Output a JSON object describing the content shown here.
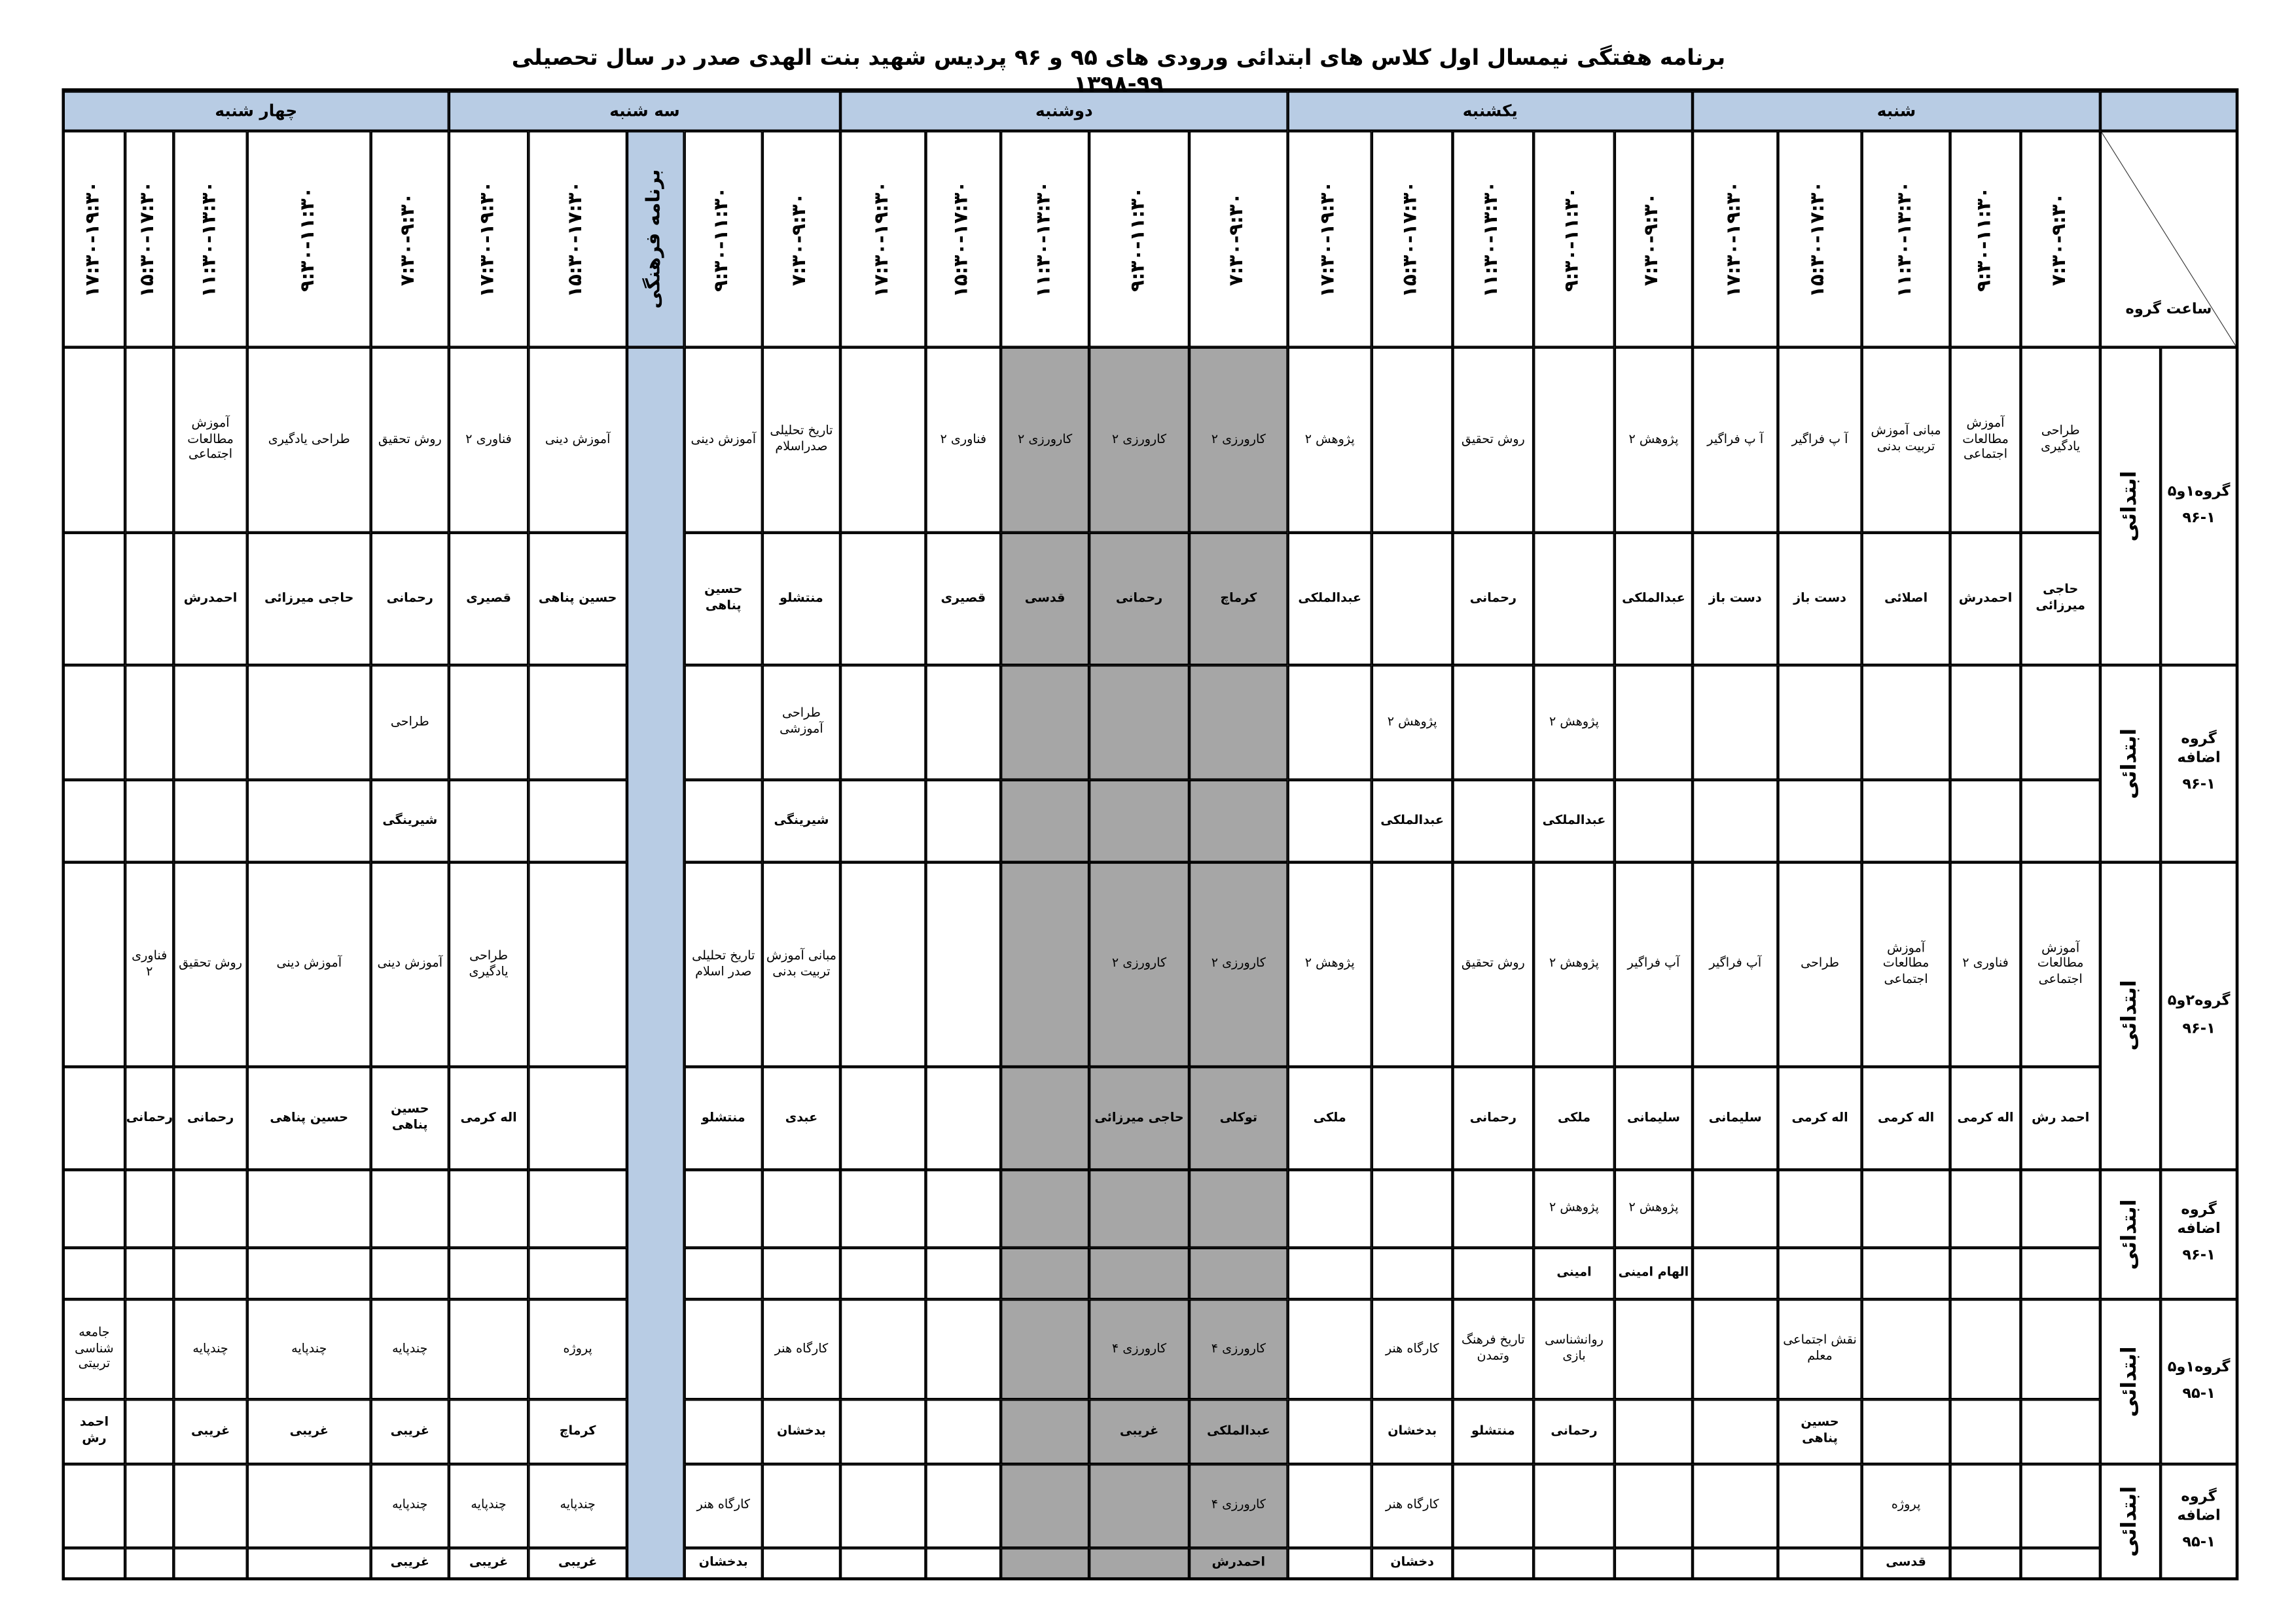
{
  "title": "برنامه هفتگی نیمسال اول کلاس های ابتدائی ورودی های ۹۵ و ۹۶ پردیس شهید بنت الهدی صدر در سال تحصیلی ۹۹-۱۳۹۸",
  "corner": "ساعت گروه",
  "days": [
    "شنبه",
    "یکشنبه",
    "دوشنبه",
    "سه شنبه",
    "چهار شنبه"
  ],
  "times": [
    "۷:۳۰-۹:۳۰",
    "۹:۳۰-۱۱:۳۰",
    "۱۱:۳۰-۱۳:۳۰",
    "۱۵:۳۰-۱۷:۳۰",
    "۱۷:۳۰-۱۹:۳۰",
    "۷:۳۰-۹:۳۰",
    "۹:۳۰-۱۱:۳۰",
    "۱۱:۳۰-۱۳:۳۰",
    "۱۵:۳۰-۱۷:۳۰",
    "۱۷:۳۰-۱۹:۳۰",
    "۷:۳۰-۹:۳۰",
    "۹:۳۰-۱۱:۳۰",
    "۱۱:۳۰-۱۳:۳۰",
    "۱۵:۳۰-۱۷:۳۰",
    "۱۷:۳۰-۱۹:۳۰",
    "۷:۳۰-۹:۳۰",
    "۹:۳۰-۱۱:۳۰",
    "برنامه فرهنگی",
    "۱۵:۳۰-۱۷:۳۰",
    "۱۷:۳۰-۱۹:۳۰",
    "۷:۳۰-۹:۳۰",
    "۹:۳۰-۱۱:۳۰",
    "۱۱:۳۰-۱۳:۳۰",
    "۱۵:۳۰-۱۷:۳۰",
    "۱۷:۳۰-۱۹:۳۰"
  ],
  "groups": [
    {
      "level": "ابتدائی",
      "name": "گروه۱و۵",
      "code": "۹۶-۱",
      "top": [
        "طراحی یادگیری",
        "آموزش مطالعات اجتماعی",
        "مبانی آموزش تربیت بدنی",
        "آ پ فراگیر",
        "آ پ فراگیر",
        "پژوهش ۲",
        null,
        "روش تحقیق",
        null,
        "پژوهش ۲",
        "کارورزی ۲",
        "کارورزی ۲",
        "کارورزی ۲",
        "فناوری ۲",
        null,
        "تاریخ تحلیلی صدراسلام",
        "آموزش دینی",
        null,
        "آموزش دینی",
        "فناوری ۲",
        "روش تحقیق",
        "طراحی یادگیری",
        "آموزش مطالعات اجتماعی",
        null,
        null
      ],
      "bottom": [
        "حاجی میرزائی",
        "احمدرش",
        "اصلائی",
        "دست باز",
        "دست باز",
        "عبدالملکی",
        null,
        "رحمانی",
        null,
        "عبدالملکی",
        "کرماچ",
        "رحمانی",
        "قدسی",
        "قصیری",
        null,
        "منتشلو",
        "حسین پناهی",
        null,
        "حسین پناهی",
        "قصیری",
        "رحمانی",
        "حاجی میرزائی",
        "احمدرش",
        null,
        null
      ]
    },
    {
      "level": "ابتدائی",
      "name": "گروه اضافه",
      "code": "۹۶-۱",
      "top": [
        null,
        null,
        null,
        null,
        null,
        null,
        "پژوهش ۲",
        null,
        "پژوهش ۲",
        null,
        null,
        null,
        null,
        null,
        null,
        "طراحی آموزشی",
        null,
        null,
        null,
        null,
        "طراحی",
        null,
        null,
        null,
        null
      ],
      "bottom": [
        null,
        null,
        null,
        null,
        null,
        null,
        "عبدالملکی",
        null,
        "عبدالملکی",
        null,
        null,
        null,
        null,
        null,
        null,
        "شیرینگی",
        null,
        null,
        null,
        null,
        "شیرینگی",
        null,
        null,
        null,
        null
      ]
    },
    {
      "level": "ابتدائی",
      "name": "گروه۲و۵",
      "code": "۹۶-۱",
      "top": [
        "آموزش مطالعات اجتماعی",
        "فناوری ۲",
        "آموزش مطالعات اجتماعی",
        "طراحی",
        "آپ فراگیر",
        "آپ فراگیر",
        "پژوهش ۲",
        "روش تحقیق",
        null,
        "پژوهش ۲",
        "کارورزی ۲",
        "کارورزی ۲",
        null,
        null,
        null,
        "مبانی آموزش تربیت بدنی",
        "تاریخ تحلیلی صدر اسلام",
        null,
        null,
        "طراحی یادگیری",
        "آموزش دینی",
        "آموزش دینی",
        "روش تحقیق",
        "فناوری ۲",
        null
      ],
      "bottom": [
        "احمد رش",
        "اله کرمی",
        "اله کرمی",
        "اله کرمی",
        "سلیمانی",
        "سلیمانی",
        "ملکی",
        "رحمانی",
        null,
        "ملکی",
        "توکلی",
        "حاجی میرزائی",
        null,
        null,
        null,
        "عبدی",
        "منتشلو",
        null,
        null,
        "اله کرمی",
        "حسین پناهی",
        "حسین پناهی",
        "رحمانی",
        "رحمانی",
        null
      ]
    },
    {
      "level": "ابتدائی",
      "name": "گروه اضافه",
      "code": "۹۶-۱",
      "top": [
        null,
        null,
        null,
        null,
        null,
        "پژوهش ۲",
        "پژوهش ۲",
        null,
        null,
        null,
        null,
        null,
        null,
        null,
        null,
        null,
        null,
        null,
        null,
        null,
        null,
        null,
        null,
        null,
        null
      ],
      "bottom": [
        null,
        null,
        null,
        null,
        null,
        "الهام امینی",
        "امینی",
        null,
        null,
        null,
        null,
        null,
        null,
        null,
        null,
        null,
        null,
        null,
        null,
        null,
        null,
        null,
        null,
        null,
        null
      ]
    },
    {
      "level": "ابتدائی",
      "name": "گروه۱و۵",
      "code": "۹۵-۱",
      "top": [
        null,
        null,
        null,
        "نقش اجتماعی معلم",
        null,
        null,
        "روانشناسی بازی",
        "تاریخ فرهنگ وتمدن",
        "کارگاه هنر",
        null,
        "کارورزی ۴",
        "کارورزی ۴",
        null,
        null,
        null,
        "کارگاه هنر",
        null,
        null,
        "پروژه",
        null,
        "چندپایه",
        "چندپایه",
        "چندپایه",
        null,
        "جامعه شناسی تربیتی"
      ],
      "bottom": [
        null,
        null,
        null,
        "حسین پناهی",
        null,
        null,
        "رحمانی",
        "منتشلو",
        "بدخشان",
        null,
        "عبدالملکی",
        "غریبی",
        null,
        null,
        null,
        "بدخشان",
        null,
        null,
        "کرماچ",
        null,
        "غریبی",
        "غریبی",
        "غریبی",
        null,
        "احمد رش"
      ]
    },
    {
      "level": "ابتدائی",
      "name": "گروه اضافه",
      "code": "۹۵-۱",
      "top": [
        null,
        null,
        "پروژه",
        null,
        null,
        null,
        null,
        null,
        "کارگاه هنر",
        null,
        "کارورزی ۴",
        null,
        null,
        null,
        null,
        null,
        "کارگاه هنر",
        null,
        "چندپایه",
        "چندپایه",
        "چندپایه",
        null,
        null,
        null,
        null
      ],
      "bottom": [
        null,
        null,
        "قدسی",
        null,
        null,
        null,
        null,
        null,
        "دخشان",
        null,
        "احمدرش",
        null,
        null,
        null,
        null,
        null,
        "بدخشان",
        null,
        "غریبی",
        "غریبی",
        "غریبی",
        null,
        null,
        null,
        null
      ]
    }
  ]
}
